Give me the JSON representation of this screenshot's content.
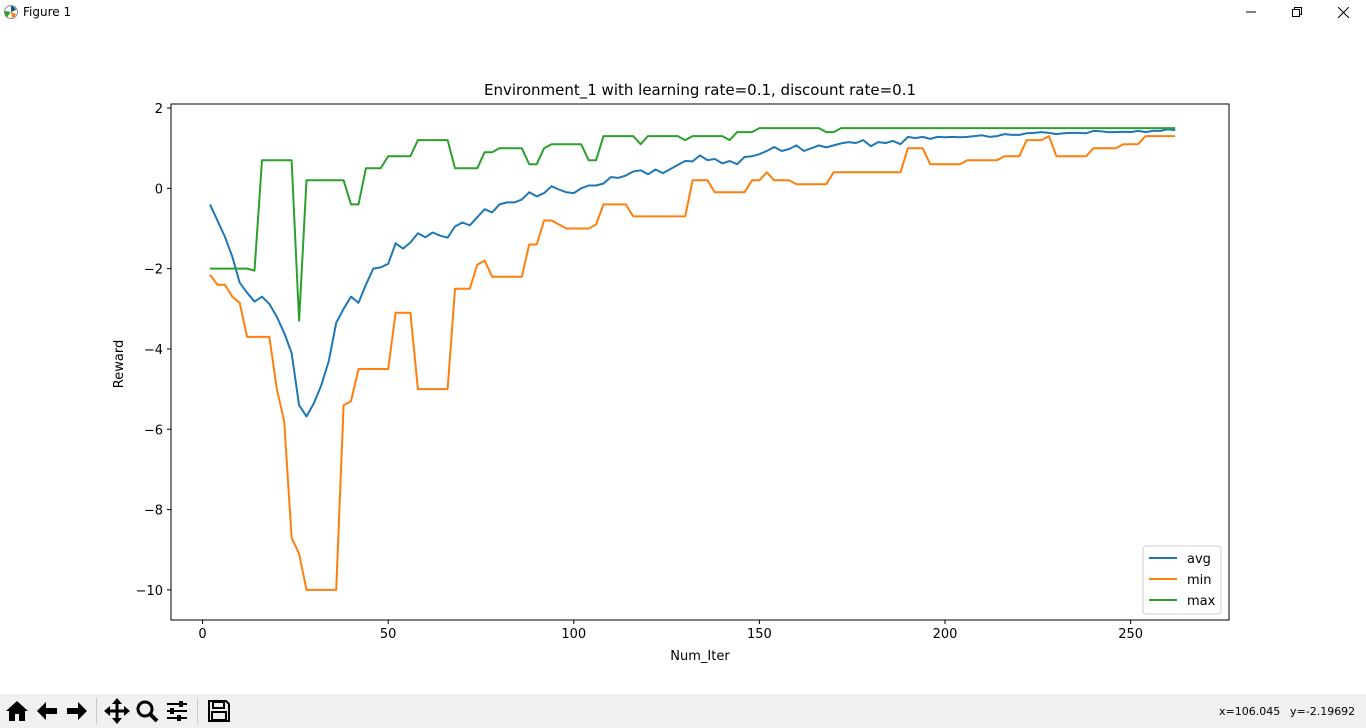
{
  "window": {
    "title": "Figure 1",
    "controls": {
      "minimize": "minimize-icon",
      "maximize": "restore-icon",
      "close": "close-icon"
    }
  },
  "toolbar": {
    "buttons": [
      {
        "name": "home-button",
        "icon": "home-icon"
      },
      {
        "name": "back-button",
        "icon": "arrow-left-icon"
      },
      {
        "name": "forward-button",
        "icon": "arrow-right-icon"
      },
      {
        "name": "pan-button",
        "icon": "move-icon"
      },
      {
        "name": "zoom-button",
        "icon": "magnifier-icon"
      },
      {
        "name": "configure-subplots-button",
        "icon": "sliders-icon"
      },
      {
        "name": "save-button",
        "icon": "floppy-disk-icon"
      }
    ],
    "x_readout": "x=106.045",
    "y_readout": "y=-2.19692"
  },
  "chart_data": {
    "type": "line",
    "title": "Environment_1 with learning rate=0.1, discount rate=0.1",
    "xlabel": "Num_Iter",
    "ylabel": "Reward",
    "xlim": [
      -8.5,
      276.5
    ],
    "ylim": [
      -10.75,
      2.1
    ],
    "xticks": [
      0,
      50,
      100,
      150,
      200,
      250
    ],
    "xtick_labels": [
      "0",
      "50",
      "100",
      "150",
      "200",
      "250"
    ],
    "yticks": [
      2,
      0,
      -2,
      -4,
      -6,
      -8,
      -10
    ],
    "ytick_labels": [
      "2",
      "0",
      "−2",
      "−4",
      "−6",
      "−8",
      "−10"
    ],
    "legend_position": "lower-right",
    "grid": false,
    "series": [
      {
        "name": "avg",
        "color": "#1f77b4",
        "points": [
          [
            2,
            -0.4
          ],
          [
            6,
            -1.2
          ],
          [
            8,
            -1.7
          ],
          [
            10,
            -2.35
          ],
          [
            12,
            -2.6
          ],
          [
            14,
            -2.82
          ],
          [
            16,
            -2.7
          ],
          [
            18,
            -2.88
          ],
          [
            20,
            -3.2
          ],
          [
            22,
            -3.6
          ],
          [
            24,
            -4.1
          ],
          [
            26,
            -5.4
          ],
          [
            28,
            -5.68
          ],
          [
            30,
            -5.35
          ],
          [
            32,
            -4.9
          ],
          [
            34,
            -4.3
          ],
          [
            36,
            -3.35
          ],
          [
            38,
            -3.0
          ],
          [
            40,
            -2.7
          ],
          [
            42,
            -2.85
          ],
          [
            44,
            -2.4
          ],
          [
            46,
            -2.0
          ],
          [
            48,
            -1.97
          ],
          [
            50,
            -1.88
          ],
          [
            52,
            -1.37
          ],
          [
            54,
            -1.5
          ],
          [
            56,
            -1.35
          ],
          [
            58,
            -1.12
          ],
          [
            60,
            -1.22
          ],
          [
            62,
            -1.1
          ],
          [
            64,
            -1.18
          ],
          [
            66,
            -1.23
          ],
          [
            68,
            -0.95
          ],
          [
            70,
            -0.85
          ],
          [
            72,
            -0.92
          ],
          [
            74,
            -0.72
          ],
          [
            76,
            -0.52
          ],
          [
            78,
            -0.6
          ],
          [
            80,
            -0.4
          ],
          [
            82,
            -0.35
          ],
          [
            84,
            -0.35
          ],
          [
            86,
            -0.28
          ],
          [
            88,
            -0.1
          ],
          [
            90,
            -0.2
          ],
          [
            92,
            -0.12
          ],
          [
            94,
            0.05
          ],
          [
            96,
            -0.03
          ],
          [
            98,
            -0.1
          ],
          [
            100,
            -0.12
          ],
          [
            102,
            0.0
          ],
          [
            104,
            0.07
          ],
          [
            106,
            0.07
          ],
          [
            108,
            0.12
          ],
          [
            110,
            0.28
          ],
          [
            112,
            0.26
          ],
          [
            114,
            0.32
          ],
          [
            116,
            0.42
          ],
          [
            118,
            0.45
          ],
          [
            120,
            0.35
          ],
          [
            122,
            0.47
          ],
          [
            124,
            0.38
          ],
          [
            126,
            0.48
          ],
          [
            128,
            0.58
          ],
          [
            130,
            0.68
          ],
          [
            132,
            0.67
          ],
          [
            134,
            0.82
          ],
          [
            136,
            0.7
          ],
          [
            138,
            0.73
          ],
          [
            140,
            0.62
          ],
          [
            142,
            0.68
          ],
          [
            144,
            0.6
          ],
          [
            146,
            0.78
          ],
          [
            148,
            0.8
          ],
          [
            150,
            0.85
          ],
          [
            152,
            0.93
          ],
          [
            154,
            1.03
          ],
          [
            156,
            0.93
          ],
          [
            158,
            0.98
          ],
          [
            160,
            1.07
          ],
          [
            162,
            0.93
          ],
          [
            164,
            1.0
          ],
          [
            166,
            1.07
          ],
          [
            168,
            1.02
          ],
          [
            170,
            1.07
          ],
          [
            172,
            1.12
          ],
          [
            174,
            1.15
          ],
          [
            176,
            1.13
          ],
          [
            178,
            1.2
          ],
          [
            180,
            1.05
          ],
          [
            182,
            1.15
          ],
          [
            184,
            1.13
          ],
          [
            186,
            1.18
          ],
          [
            188,
            1.1
          ],
          [
            190,
            1.28
          ],
          [
            192,
            1.25
          ],
          [
            194,
            1.28
          ],
          [
            196,
            1.23
          ],
          [
            198,
            1.28
          ],
          [
            200,
            1.27
          ],
          [
            202,
            1.28
          ],
          [
            204,
            1.27
          ],
          [
            206,
            1.28
          ],
          [
            208,
            1.3
          ],
          [
            210,
            1.32
          ],
          [
            212,
            1.28
          ],
          [
            214,
            1.3
          ],
          [
            216,
            1.35
          ],
          [
            218,
            1.33
          ],
          [
            220,
            1.33
          ],
          [
            222,
            1.37
          ],
          [
            224,
            1.38
          ],
          [
            226,
            1.4
          ],
          [
            228,
            1.38
          ],
          [
            230,
            1.35
          ],
          [
            232,
            1.37
          ],
          [
            234,
            1.38
          ],
          [
            236,
            1.38
          ],
          [
            238,
            1.37
          ],
          [
            240,
            1.43
          ],
          [
            242,
            1.42
          ],
          [
            244,
            1.4
          ],
          [
            246,
            1.4
          ],
          [
            248,
            1.41
          ],
          [
            250,
            1.4
          ],
          [
            252,
            1.43
          ],
          [
            254,
            1.4
          ],
          [
            256,
            1.43
          ],
          [
            258,
            1.43
          ],
          [
            260,
            1.47
          ],
          [
            262,
            1.45
          ]
        ]
      },
      {
        "name": "min",
        "color": "#ff7f0e",
        "points": [
          [
            2,
            -2.15
          ],
          [
            4,
            -2.4
          ],
          [
            6,
            -2.4
          ],
          [
            8,
            -2.7
          ],
          [
            10,
            -2.85
          ],
          [
            12,
            -3.7
          ],
          [
            14,
            -3.7
          ],
          [
            18,
            -3.7
          ],
          [
            20,
            -5.0
          ],
          [
            22,
            -5.8
          ],
          [
            24,
            -8.7
          ],
          [
            26,
            -9.1
          ],
          [
            28,
            -10.0
          ],
          [
            36,
            -10.0
          ],
          [
            38,
            -5.4
          ],
          [
            40,
            -5.3
          ],
          [
            42,
            -4.5
          ],
          [
            50,
            -4.5
          ],
          [
            52,
            -3.1
          ],
          [
            56,
            -3.1
          ],
          [
            58,
            -5.0
          ],
          [
            66,
            -5.0
          ],
          [
            68,
            -2.5
          ],
          [
            72,
            -2.5
          ],
          [
            74,
            -1.9
          ],
          [
            76,
            -1.8
          ],
          [
            78,
            -2.2
          ],
          [
            86,
            -2.2
          ],
          [
            88,
            -1.4
          ],
          [
            90,
            -1.4
          ],
          [
            92,
            -0.8
          ],
          [
            94,
            -0.8
          ],
          [
            98,
            -1.0
          ],
          [
            104,
            -1.0
          ],
          [
            106,
            -0.9
          ],
          [
            108,
            -0.4
          ],
          [
            114,
            -0.4
          ],
          [
            116,
            -0.7
          ],
          [
            130,
            -0.7
          ],
          [
            132,
            0.2
          ],
          [
            136,
            0.2
          ],
          [
            138,
            -0.1
          ],
          [
            146,
            -0.1
          ],
          [
            148,
            0.2
          ],
          [
            150,
            0.2
          ],
          [
            152,
            0.4
          ],
          [
            154,
            0.2
          ],
          [
            158,
            0.2
          ],
          [
            160,
            0.1
          ],
          [
            168,
            0.1
          ],
          [
            170,
            0.4
          ],
          [
            188,
            0.4
          ],
          [
            190,
            1.0
          ],
          [
            194,
            1.0
          ],
          [
            196,
            0.6
          ],
          [
            204,
            0.6
          ],
          [
            206,
            0.7
          ],
          [
            214,
            0.7
          ],
          [
            216,
            0.8
          ],
          [
            220,
            0.8
          ],
          [
            222,
            1.2
          ],
          [
            226,
            1.2
          ],
          [
            228,
            1.3
          ],
          [
            230,
            0.8
          ],
          [
            238,
            0.8
          ],
          [
            240,
            1.0
          ],
          [
            246,
            1.0
          ],
          [
            248,
            1.1
          ],
          [
            252,
            1.1
          ],
          [
            254,
            1.3
          ],
          [
            262,
            1.3
          ]
        ]
      },
      {
        "name": "max",
        "color": "#2ca02c",
        "points": [
          [
            2,
            -2.0
          ],
          [
            12,
            -2.0
          ],
          [
            14,
            -2.05
          ],
          [
            16,
            0.7
          ],
          [
            24,
            0.7
          ],
          [
            26,
            -3.3
          ],
          [
            28,
            0.2
          ],
          [
            38,
            0.2
          ],
          [
            40,
            -0.4
          ],
          [
            42,
            -0.4
          ],
          [
            44,
            0.5
          ],
          [
            48,
            0.5
          ],
          [
            50,
            0.8
          ],
          [
            56,
            0.8
          ],
          [
            58,
            1.2
          ],
          [
            66,
            1.2
          ],
          [
            68,
            0.5
          ],
          [
            74,
            0.5
          ],
          [
            76,
            0.9
          ],
          [
            78,
            0.9
          ],
          [
            80,
            1.0
          ],
          [
            86,
            1.0
          ],
          [
            88,
            0.6
          ],
          [
            90,
            0.6
          ],
          [
            92,
            1.0
          ],
          [
            94,
            1.1
          ],
          [
            102,
            1.1
          ],
          [
            104,
            0.7
          ],
          [
            106,
            0.7
          ],
          [
            108,
            1.3
          ],
          [
            116,
            1.3
          ],
          [
            118,
            1.1
          ],
          [
            120,
            1.3
          ],
          [
            128,
            1.3
          ],
          [
            130,
            1.2
          ],
          [
            132,
            1.3
          ],
          [
            140,
            1.3
          ],
          [
            142,
            1.2
          ],
          [
            144,
            1.4
          ],
          [
            148,
            1.4
          ],
          [
            150,
            1.5
          ],
          [
            166,
            1.5
          ],
          [
            168,
            1.4
          ],
          [
            170,
            1.4
          ],
          [
            172,
            1.5
          ],
          [
            262,
            1.5
          ]
        ]
      }
    ]
  }
}
